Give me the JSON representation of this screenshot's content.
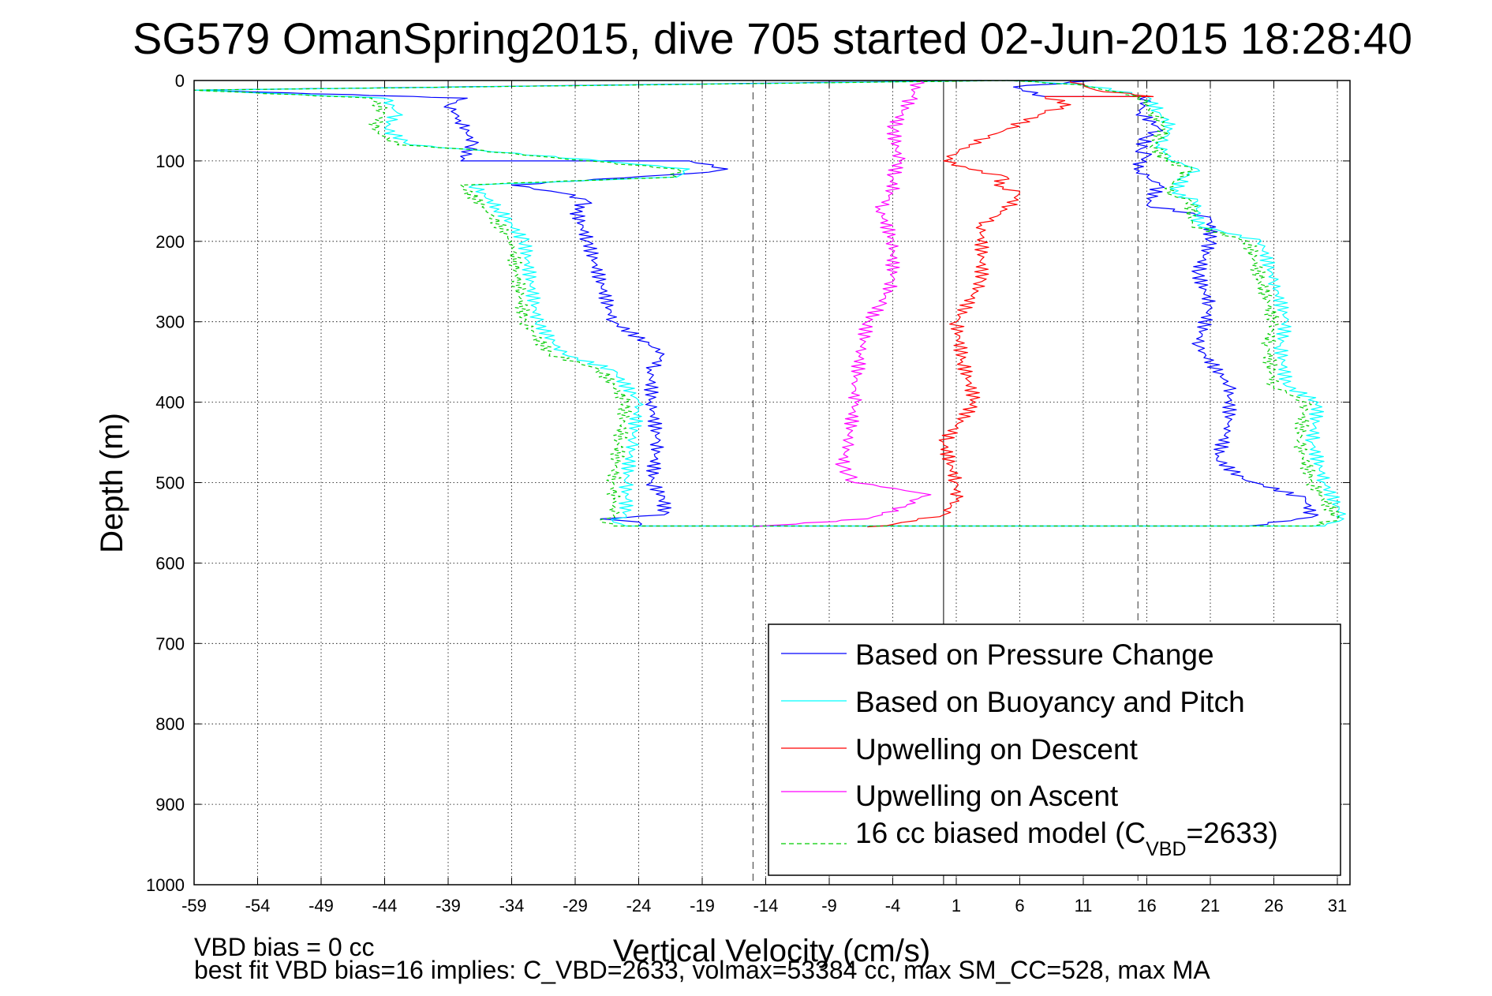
{
  "chart_data": {
    "type": "line",
    "title": "SG579 OmanSpring2015, dive 705 started 02-Jun-2015 18:28:40",
    "xlabel": "Vertical Velocity (cm/s)",
    "ylabel": "Depth (m)",
    "xlim": [
      -59,
      32
    ],
    "ylim": [
      1000,
      0
    ],
    "y_reversed": true,
    "grid": true,
    "legend_placement": "bottom-right",
    "x_ticks": [
      "-59",
      "-54",
      "-49",
      "-44",
      "-39",
      "-34",
      "-29",
      "-24",
      "-19",
      "-14",
      "-9",
      "-4",
      "1",
      "6",
      "11",
      "16",
      "21",
      "26",
      "31"
    ],
    "y_ticks": [
      "0",
      "100",
      "200",
      "300",
      "400",
      "500",
      "600",
      "700",
      "800",
      "900",
      "1000"
    ],
    "reference_lines": [
      {
        "x": 0,
        "style": "solid"
      },
      {
        "x": -15,
        "style": "dashed"
      },
      {
        "x": 15.3,
        "style": "dashed"
      }
    ],
    "series": [
      {
        "name": "Based on Pressure Change",
        "color": "#0000ff",
        "style": "solid",
        "x": [
          3,
          -59,
          -37.5,
          -39,
          -38,
          -37,
          -38,
          -20,
          -17,
          -18.5,
          -34,
          -30,
          -28,
          -29,
          -28,
          -26,
          -22,
          -23,
          -23,
          -22.5,
          -23,
          -22,
          -22,
          -27,
          -24,
          -24,
          24,
          29,
          28.5,
          23.5,
          21.5,
          22.5,
          22.5,
          20,
          21,
          20,
          21,
          21,
          16,
          17,
          16,
          15,
          16,
          15.5,
          16,
          17,
          15.5,
          16,
          8,
          5.5,
          12
        ],
        "y": [
          0,
          12,
          22,
          30,
          50,
          80,
          100,
          100,
          110,
          114,
          130,
          140,
          150,
          160,
          200,
          300,
          340,
          360,
          400,
          450,
          500,
          520,
          540,
          545,
          549,
          554,
          554,
          543,
          520,
          495,
          470,
          430,
          380,
          330,
          280,
          240,
          200,
          170,
          155,
          130,
          120,
          110,
          95,
          85,
          70,
          60,
          40,
          20,
          20,
          8,
          0
        ]
      },
      {
        "name": "Based on Buoyancy and Pitch",
        "color": "#00ffff",
        "style": "solid",
        "x": [
          5,
          -59,
          -44,
          -43,
          -44,
          -42,
          -38,
          -27,
          -20,
          -21,
          -37,
          -35,
          -33,
          -32,
          -30,
          -26,
          -24,
          -24.5,
          -25,
          -25,
          -25,
          -26,
          -25,
          30,
          31.5,
          30,
          29,
          29.5,
          27,
          26.5,
          27,
          26,
          25,
          20,
          20,
          18,
          19,
          20,
          18,
          17,
          18,
          17,
          16,
          11,
          5
        ],
        "y": [
          0,
          12,
          22,
          40,
          60,
          80,
          85,
          100,
          110,
          120,
          130,
          160,
          200,
          300,
          340,
          360,
          400,
          450,
          500,
          520,
          540,
          549,
          554,
          554,
          545,
          500,
          450,
          400,
          380,
          330,
          300,
          250,
          200,
          180,
          150,
          140,
          120,
          110,
          100,
          80,
          60,
          40,
          20,
          5,
          0
        ]
      },
      {
        "name": "Upwelling on Descent",
        "color": "#ff0000",
        "style": "solid",
        "x": [
          10,
          12,
          16.5,
          8,
          10,
          8,
          5,
          2,
          0,
          2,
          3,
          5,
          4,
          6,
          5,
          3,
          3,
          1,
          1.5,
          2.5,
          0,
          1,
          1,
          0,
          -4,
          -6
        ],
        "y": [
          0,
          12,
          20,
          20,
          30,
          40,
          60,
          80,
          100,
          110,
          115,
          120,
          130,
          140,
          160,
          180,
          250,
          300,
          350,
          400,
          450,
          500,
          520,
          540,
          552,
          555
        ]
      },
      {
        "name": "Upwelling on Ascent",
        "color": "#ff00ff",
        "style": "solid",
        "x": [
          -2,
          -2.5,
          -4,
          -3.5,
          -4,
          -4,
          -5,
          -4,
          -4,
          -5,
          -6,
          -6.5,
          -7,
          -7,
          -7.5,
          -8,
          -7.5,
          -7,
          -5,
          -3,
          -1,
          -2,
          -3,
          -6,
          -15
        ],
        "y": [
          0,
          20,
          60,
          100,
          120,
          140,
          160,
          200,
          250,
          280,
          300,
          340,
          380,
          400,
          450,
          480,
          490,
          500,
          505,
          510,
          515,
          520,
          530,
          545,
          555
        ]
      },
      {
        "name": "16 cc biased model (C_VBD=2633)",
        "color": "#00cc00",
        "style": "dashed",
        "x": [
          6,
          -59,
          -45,
          -44,
          -45,
          -43,
          -38,
          -28,
          -21,
          -21,
          -38,
          -36,
          -34,
          -33,
          -31,
          -27,
          -25,
          -25.5,
          -26,
          -26,
          -26,
          -27,
          -26,
          29,
          31,
          29,
          28,
          28.5,
          26,
          25.5,
          26,
          25,
          24,
          19.5,
          19.5,
          17.5,
          18.5,
          19.5,
          17.5,
          16.5,
          17.5,
          16.5,
          15.5,
          10.5,
          5
        ],
        "y": [
          0,
          12,
          22,
          40,
          60,
          80,
          85,
          100,
          110,
          120,
          130,
          160,
          200,
          300,
          340,
          360,
          400,
          450,
          500,
          520,
          540,
          549,
          554,
          554,
          545,
          500,
          450,
          400,
          380,
          330,
          300,
          250,
          200,
          180,
          150,
          140,
          120,
          110,
          100,
          80,
          60,
          40,
          20,
          5,
          0
        ]
      }
    ],
    "legend": [
      {
        "label": "Based on Pressure Change",
        "color": "#0000ff",
        "style": "solid"
      },
      {
        "label": "Based on Buoyancy and Pitch",
        "color": "#00ffff",
        "style": "solid"
      },
      {
        "label": "Upwelling on Descent",
        "color": "#ff0000",
        "style": "solid"
      },
      {
        "label": "Upwelling on Ascent",
        "color": "#ff00ff",
        "style": "solid"
      },
      {
        "label_main": "16 cc biased model (C",
        "label_sub": "VBD",
        "label_tail": "=2633)",
        "color": "#00cc00",
        "style": "dashed"
      }
    ],
    "annotations": [
      "VBD bias = 0 cc",
      "best fit VBD bias=16 implies: C_VBD=2633, volmax=53384 cc, max SM_CC=528, max MA"
    ]
  }
}
